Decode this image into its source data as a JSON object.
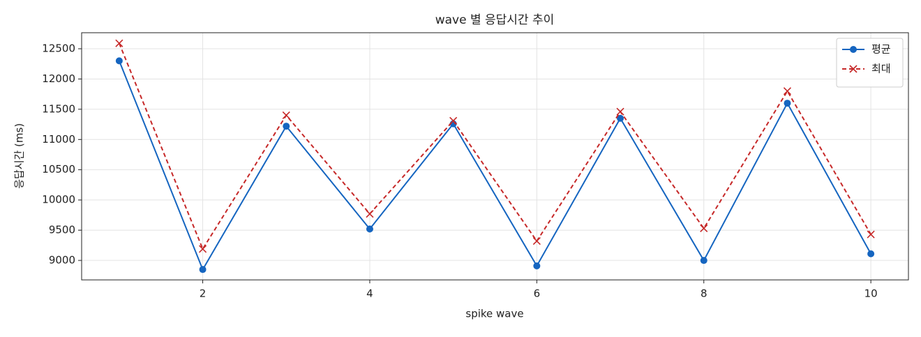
{
  "chart_data": {
    "type": "line",
    "title": "wave 별 응답시간 추이",
    "xlabel": "spike wave",
    "ylabel": "응답시간 (ms)",
    "x": [
      1,
      2,
      3,
      4,
      5,
      6,
      7,
      8,
      9,
      10
    ],
    "series": [
      {
        "name": "평균",
        "color": "#1565c0",
        "marker": "o",
        "linestyle": "solid",
        "values": [
          12300,
          8850,
          11220,
          9520,
          11260,
          8910,
          11350,
          9000,
          11600,
          9110
        ]
      },
      {
        "name": "최대",
        "color": "#c62828",
        "marker": "x",
        "linestyle": "dashed",
        "values": [
          12590,
          9190,
          11400,
          9770,
          11310,
          9320,
          11460,
          9530,
          11800,
          9430
        ]
      }
    ],
    "xlim": [
      0.55,
      10.45
    ],
    "ylim": [
      8678,
      12765
    ],
    "xticks": [
      2,
      4,
      6,
      8,
      10
    ],
    "yticks": [
      9000,
      9500,
      10000,
      10500,
      11000,
      11500,
      12000,
      12500
    ],
    "grid": true,
    "legend": "upper right"
  }
}
